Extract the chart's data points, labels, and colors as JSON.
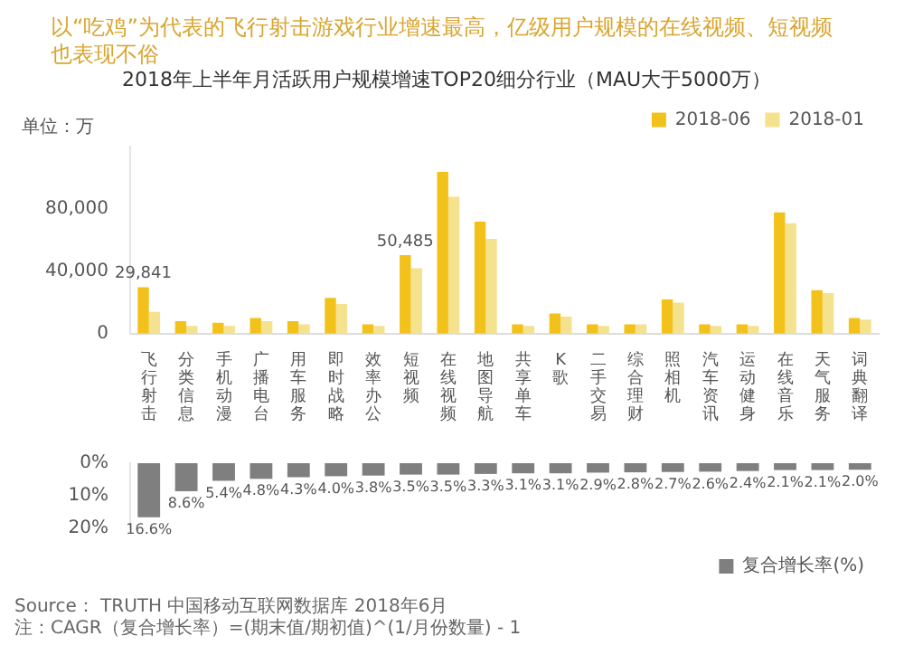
{
  "chart_data": [
    {
      "type": "bar",
      "title": "以“吃鸡”为代表的飞行射击游戏行业增速最高，亿级用户规模的在线视频、短视频也表现不俗",
      "subtitle": "2018年上半年月活跃用户规模增速TOP20细分行业（MAU大于5000万）",
      "ylabel": "单位：万",
      "categories": [
        "飞行射击",
        "分类信息",
        "手机动漫",
        "广播电台",
        "用车服务",
        "即时战略",
        "效率办公",
        "短视频",
        "在线视频",
        "地图导航",
        "共享单车",
        "K歌",
        "二手交易",
        "综合理财",
        "照相机",
        "汽车资讯",
        "运动健身",
        "在线音乐",
        "天气服务",
        "词典翻译"
      ],
      "series": [
        {
          "name": "2018-06",
          "color": "#f2c21b",
          "values": [
            29841,
            8000,
            7000,
            10000,
            8000,
            23000,
            6000,
            50485,
            104000,
            72000,
            6000,
            13000,
            6000,
            6000,
            22000,
            6000,
            6000,
            78000,
            28000,
            10000
          ],
          "value_labels": [
            "29,841",
            null,
            null,
            null,
            null,
            null,
            null,
            "50,485",
            null,
            null,
            null,
            null,
            null,
            null,
            null,
            null,
            null,
            null,
            null,
            null
          ]
        },
        {
          "name": "2018-01",
          "color": "#f5e28e",
          "values": [
            14000,
            5000,
            5000,
            8000,
            6000,
            19000,
            5000,
            42000,
            88000,
            61000,
            5000,
            11000,
            5000,
            6000,
            20000,
            5000,
            5000,
            71000,
            26000,
            9000
          ]
        }
      ],
      "ylim": [
        0,
        120000
      ],
      "yticks": [
        0,
        {
          "value": 40000,
          "label": "40,000"
        },
        {
          "value": 80000,
          "label": "80,000"
        }
      ],
      "legend": "top right",
      "grid": false
    },
    {
      "type": "bar",
      "categories": [
        "飞行射击",
        "分类信息",
        "手机动漫",
        "广播电台",
        "用车服务",
        "即时战略",
        "效率办公",
        "短视频",
        "在线视频",
        "地图导航",
        "共享单车",
        "K歌",
        "二手交易",
        "综合理财",
        "照相机",
        "汽车资讯",
        "运动健身",
        "在线音乐",
        "天气服务",
        "词典翻译"
      ],
      "series": [
        {
          "name": "复合增长率(%)",
          "color": "#7f7f7f",
          "values": [
            16.6,
            8.6,
            5.4,
            4.8,
            4.3,
            4.0,
            3.8,
            3.5,
            3.5,
            3.3,
            3.1,
            3.1,
            2.9,
            2.8,
            2.7,
            2.6,
            2.4,
            2.1,
            2.1,
            2.0
          ],
          "value_labels": [
            "16.6%",
            "8.6%",
            "5.4%",
            "4.8%",
            "4.3%",
            "4.0%",
            "3.8%",
            "3.5%",
            "3.5%",
            "3.3%",
            "3.1%",
            "3.1%",
            "2.9%",
            "2.8%",
            "2.7%",
            "2.6%",
            "2.4%",
            "2.1%",
            "2.1%",
            "2.0%"
          ]
        }
      ],
      "ylim": [
        20,
        0
      ],
      "yticks": [
        {
          "value": 0,
          "label": "0%"
        },
        {
          "value": 10,
          "label": "10%"
        },
        {
          "value": 20,
          "label": "20%"
        }
      ],
      "tick_labels": "y",
      "legend": "bottom right",
      "grid": false,
      "annotations": [
        "Source： TRUTH 中国移动互联网数据库 2018年6月",
        "注：CAGR（复合增长率）=(期末值/期初值)^(1/月份数量) - 1"
      ]
    }
  ]
}
